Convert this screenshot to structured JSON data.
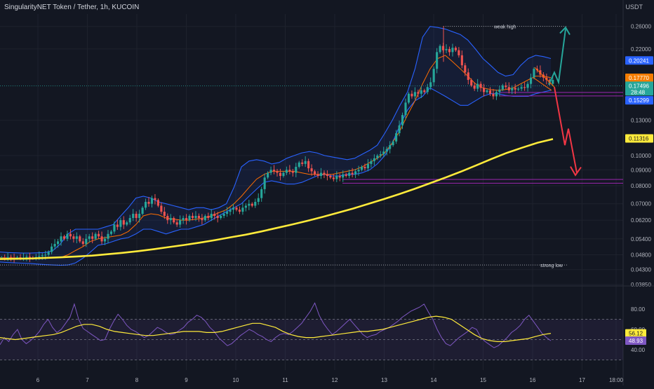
{
  "header": {
    "title": "SingularityNET Token / Tether, 1h, KUCOIN",
    "unit": "USDT"
  },
  "main_pane": {
    "price_ticks": [
      "0.26000",
      "0.22000",
      "0.13000",
      "0.10000",
      "0.09000",
      "0.08000",
      "0.07000",
      "0.06200",
      "0.05400",
      "0.04800",
      "0.04300",
      "0.03850"
    ],
    "price_labels": {
      "upper_band": "0.20241",
      "last_price": "0.17770",
      "current_price": "0.17496",
      "countdown": "28:48",
      "lower_band": "0.15299",
      "ma_long": "0.11316"
    },
    "annotations": {
      "weak_high": "weak high",
      "strong_low": "strong low"
    }
  },
  "rsi_pane": {
    "ticks": [
      "80.00",
      "60.00",
      "40.00"
    ],
    "labels": {
      "rsi_ma": "56.12",
      "rsi": "48.93"
    }
  },
  "time_axis": {
    "labels": [
      "6",
      "7",
      "8",
      "9",
      "10",
      "11",
      "12",
      "13",
      "14",
      "15",
      "16",
      "17",
      "18:00"
    ]
  },
  "colors": {
    "background": "#131722",
    "grid": "#1e222d",
    "candle_up": "#26a69a",
    "candle_down": "#ef5350",
    "bb_line": "#2962ff",
    "bb_fill": "#2962ff",
    "basis": "#ff6d00",
    "ma_long": "#ffeb3b",
    "rsi_line": "#7e57c2",
    "rsi_ma": "#ffeb3b",
    "arrow_up": "#26a69a",
    "arrow_down": "#f23645",
    "zone": "#9c27b0"
  },
  "chart_data": {
    "type": "candlestick",
    "x_labels": [
      "6",
      "7",
      "8",
      "9",
      "10",
      "11",
      "12",
      "13",
      "14",
      "15",
      "16",
      "17",
      "18:00"
    ],
    "y_scale": "log",
    "ylim": [
      0.0385,
      0.285
    ],
    "close": [
      0.047,
      0.0468,
      0.0472,
      0.047,
      0.0468,
      0.0471,
      0.0469,
      0.047,
      0.0473,
      0.047,
      0.0468,
      0.0472,
      0.0475,
      0.0478,
      0.048,
      0.049,
      0.051,
      0.052,
      0.053,
      0.055,
      0.054,
      0.056,
      0.055,
      0.054,
      0.055,
      0.053,
      0.052,
      0.054,
      0.055,
      0.054,
      0.056,
      0.055,
      0.053,
      0.054,
      0.056,
      0.057,
      0.06,
      0.059,
      0.062,
      0.06,
      0.061,
      0.063,
      0.065,
      0.063,
      0.065,
      0.068,
      0.071,
      0.07,
      0.073,
      0.072,
      0.069,
      0.066,
      0.064,
      0.062,
      0.063,
      0.061,
      0.06,
      0.062,
      0.063,
      0.062,
      0.064,
      0.063,
      0.064,
      0.063,
      0.062,
      0.064,
      0.063,
      0.065,
      0.064,
      0.063,
      0.064,
      0.065,
      0.066,
      0.067,
      0.068,
      0.067,
      0.066,
      0.068,
      0.069,
      0.07,
      0.069,
      0.071,
      0.073,
      0.078,
      0.085,
      0.088,
      0.09,
      0.089,
      0.088,
      0.086,
      0.088,
      0.09,
      0.089,
      0.088,
      0.092,
      0.095,
      0.094,
      0.096,
      0.091,
      0.089,
      0.087,
      0.086,
      0.088,
      0.087,
      0.086,
      0.085,
      0.084,
      0.086,
      0.085,
      0.087,
      0.086,
      0.088,
      0.087,
      0.089,
      0.09,
      0.092,
      0.091,
      0.094,
      0.096,
      0.098,
      0.1,
      0.101,
      0.103,
      0.105,
      0.108,
      0.111,
      0.118,
      0.125,
      0.135,
      0.148,
      0.158,
      0.155,
      0.16,
      0.158,
      0.162,
      0.16,
      0.166,
      0.172,
      0.19,
      0.215,
      0.225,
      0.218,
      0.22,
      0.215,
      0.222,
      0.218,
      0.21,
      0.195,
      0.185,
      0.175,
      0.168,
      0.164,
      0.17,
      0.165,
      0.16,
      0.162,
      0.158,
      0.155,
      0.16,
      0.163,
      0.168,
      0.166,
      0.162,
      0.165,
      0.163,
      0.164,
      0.166,
      0.165,
      0.17,
      0.178,
      0.19,
      0.188,
      0.182,
      0.178,
      0.175,
      0.17,
      0.175
    ],
    "bollinger_upper": [
      0.049,
      0.0488,
      0.0487,
      0.0486,
      0.0486,
      0.0487,
      0.0488,
      0.0495,
      0.052,
      0.056,
      0.058,
      0.058,
      0.058,
      0.058,
      0.059,
      0.06,
      0.064,
      0.068,
      0.073,
      0.074,
      0.073,
      0.071,
      0.07,
      0.069,
      0.068,
      0.067,
      0.068,
      0.068,
      0.067,
      0.068,
      0.07,
      0.079,
      0.092,
      0.096,
      0.097,
      0.096,
      0.094,
      0.095,
      0.098,
      0.1,
      0.102,
      0.103,
      0.102,
      0.1,
      0.099,
      0.098,
      0.097,
      0.098,
      0.101,
      0.104,
      0.108,
      0.118,
      0.13,
      0.145,
      0.16,
      0.19,
      0.24,
      0.26,
      0.258,
      0.255,
      0.25,
      0.245,
      0.235,
      0.22,
      0.205,
      0.195,
      0.185,
      0.18,
      0.182,
      0.195,
      0.205,
      0.21,
      0.208,
      0.205
    ],
    "bollinger_lower": [
      0.0455,
      0.0453,
      0.0452,
      0.0451,
      0.045,
      0.0448,
      0.0446,
      0.0445,
      0.0444,
      0.0445,
      0.0452,
      0.0468,
      0.049,
      0.0515,
      0.052,
      0.053,
      0.054,
      0.0545,
      0.056,
      0.058,
      0.058,
      0.057,
      0.056,
      0.057,
      0.058,
      0.058,
      0.059,
      0.06,
      0.062,
      0.064,
      0.066,
      0.068,
      0.07,
      0.074,
      0.078,
      0.082,
      0.083,
      0.082,
      0.081,
      0.081,
      0.082,
      0.084,
      0.086,
      0.087,
      0.086,
      0.086,
      0.087,
      0.087,
      0.088,
      0.09,
      0.094,
      0.1,
      0.11,
      0.125,
      0.14,
      0.15,
      0.155,
      0.165,
      0.16,
      0.155,
      0.15,
      0.145,
      0.145,
      0.15,
      0.155,
      0.158,
      0.158,
      0.156,
      0.155,
      0.155,
      0.155,
      0.158,
      0.16,
      0.162
    ],
    "basis": [
      0.047,
      0.0469,
      0.0469,
      0.0468,
      0.0468,
      0.0468,
      0.0468,
      0.0469,
      0.047,
      0.048,
      0.0495,
      0.051,
      0.053,
      0.054,
      0.0545,
      0.055,
      0.0555,
      0.057,
      0.06,
      0.064,
      0.065,
      0.0645,
      0.063,
      0.0625,
      0.062,
      0.062,
      0.0625,
      0.063,
      0.064,
      0.0655,
      0.067,
      0.07,
      0.074,
      0.079,
      0.084,
      0.087,
      0.089,
      0.089,
      0.089,
      0.089,
      0.088,
      0.087,
      0.087,
      0.087,
      0.087,
      0.088,
      0.089,
      0.09,
      0.092,
      0.095,
      0.098,
      0.102,
      0.11,
      0.12,
      0.135,
      0.15,
      0.17,
      0.19,
      0.205,
      0.21,
      0.2,
      0.19,
      0.18,
      0.17,
      0.165,
      0.163,
      0.162,
      0.163,
      0.165,
      0.17,
      0.175,
      0.18,
      0.18,
      0.178
    ],
    "ma_long": [
      0.0465,
      0.0466,
      0.0467,
      0.0469,
      0.0471,
      0.0474,
      0.0477,
      0.0482,
      0.0487,
      0.0493,
      0.05,
      0.0508,
      0.0516,
      0.0525,
      0.0535,
      0.0546,
      0.0557,
      0.057,
      0.0585,
      0.06,
      0.0617,
      0.0635,
      0.0655,
      0.0676,
      0.07,
      0.0725,
      0.0752,
      0.0782,
      0.0815,
      0.085,
      0.0888,
      0.093,
      0.0975,
      0.102,
      0.106,
      0.11,
      0.113
    ],
    "rsi": [
      45,
      52,
      48,
      55,
      60,
      50,
      46,
      49,
      53,
      58,
      65,
      70,
      62,
      57,
      60,
      66,
      72,
      85,
      70,
      61,
      58,
      55,
      52,
      49,
      50,
      60,
      68,
      75,
      70,
      64,
      60,
      58,
      55,
      52,
      54,
      58,
      62,
      60,
      57,
      55,
      56,
      59,
      62,
      67,
      70,
      74,
      72,
      68,
      62,
      58,
      52,
      48,
      44,
      46,
      50,
      54,
      57,
      60,
      58,
      55,
      53,
      50,
      48,
      52,
      55,
      56,
      55,
      58,
      62,
      66,
      72,
      78,
      86,
      74,
      66,
      60,
      55,
      58,
      62,
      66,
      70,
      65,
      60,
      55,
      52,
      54,
      55,
      58,
      60,
      62,
      65,
      68,
      72,
      75,
      78,
      80,
      82,
      85,
      77,
      70,
      60,
      52,
      46,
      44,
      48,
      52,
      55,
      58,
      62,
      60,
      52,
      48,
      45,
      42,
      44,
      48,
      52,
      57,
      60,
      64,
      70,
      74,
      68,
      62,
      56,
      52,
      48.93
    ],
    "rsi_ma": [
      52,
      51,
      50,
      51,
      52,
      53,
      54,
      55,
      57,
      60,
      63,
      65,
      65,
      63,
      60,
      58,
      57,
      56,
      55,
      54,
      54,
      55,
      56,
      57,
      58,
      58,
      58,
      57,
      57,
      58,
      60,
      62,
      64,
      66,
      66,
      64,
      62,
      58,
      55,
      53,
      52,
      52,
      53,
      54,
      55,
      56,
      57,
      58,
      58,
      59,
      60,
      62,
      64,
      66,
      68,
      70,
      72,
      73,
      72,
      70,
      65,
      60,
      55,
      51,
      49,
      48,
      48,
      49,
      50,
      51,
      53,
      55,
      56.12
    ],
    "rsi_ylim": [
      20,
      100
    ],
    "annotations": [
      "weak high",
      "strong low"
    ]
  }
}
